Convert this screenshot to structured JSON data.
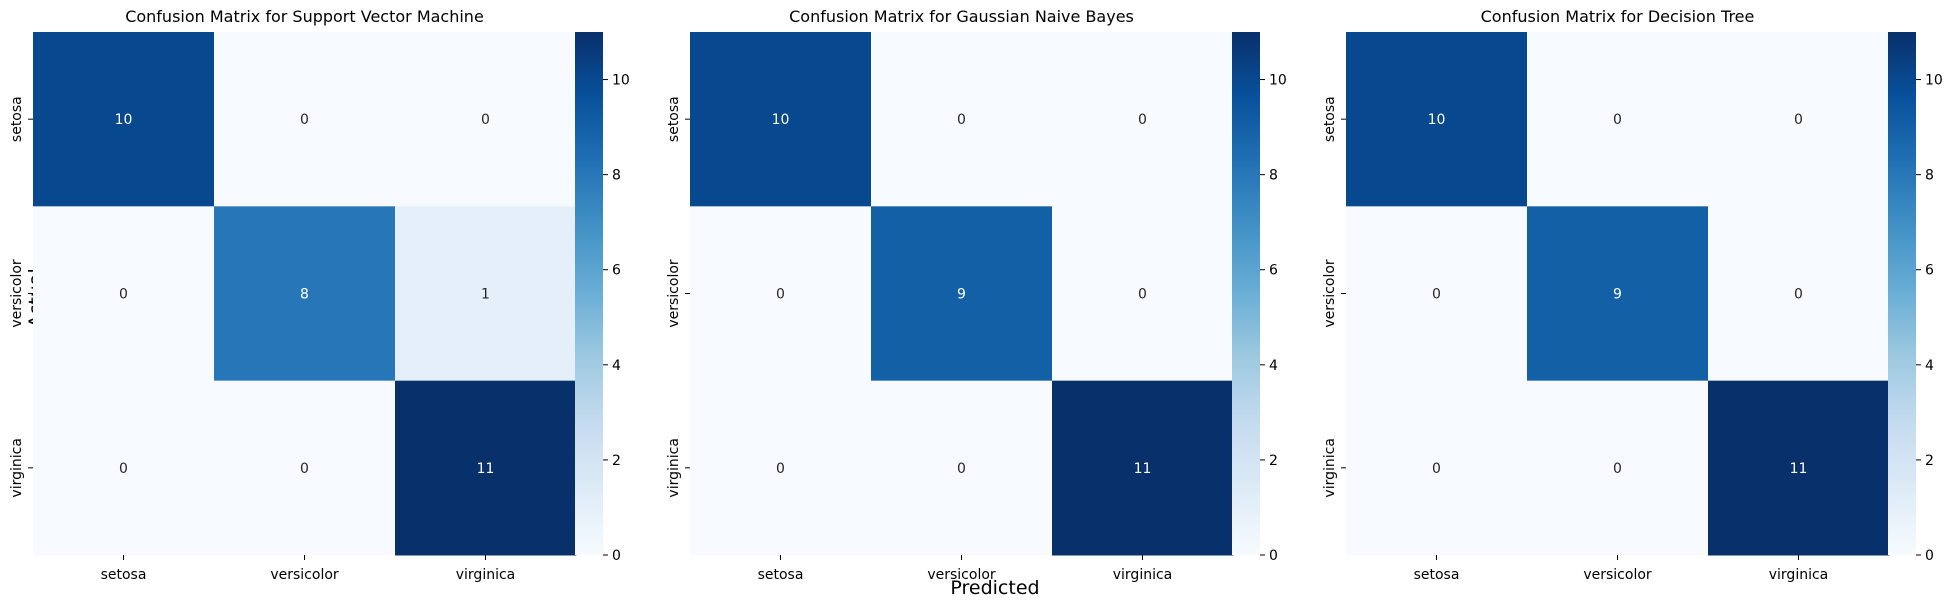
{
  "figure": {
    "xlabel": "Predicted",
    "ylabel": "Actual"
  },
  "chart_data": [
    {
      "type": "heatmap",
      "title": "Confusion Matrix for Support Vector Machine",
      "x_categories": [
        "setosa",
        "versicolor",
        "virginica"
      ],
      "y_categories": [
        "setosa",
        "versicolor",
        "virginica"
      ],
      "values": [
        [
          10,
          0,
          0
        ],
        [
          0,
          8,
          1
        ],
        [
          0,
          0,
          11
        ]
      ],
      "colormap": "Blues",
      "vmin": 0,
      "vmax": 11,
      "colorbar_ticks": [
        0,
        2,
        4,
        6,
        8,
        10
      ]
    },
    {
      "type": "heatmap",
      "title": "Confusion Matrix for Gaussian Naive Bayes",
      "x_categories": [
        "setosa",
        "versicolor",
        "virginica"
      ],
      "y_categories": [
        "setosa",
        "versicolor",
        "virginica"
      ],
      "values": [
        [
          10,
          0,
          0
        ],
        [
          0,
          9,
          0
        ],
        [
          0,
          0,
          11
        ]
      ],
      "colormap": "Blues",
      "vmin": 0,
      "vmax": 11,
      "colorbar_ticks": [
        0,
        2,
        4,
        6,
        8,
        10
      ]
    },
    {
      "type": "heatmap",
      "title": "Confusion Matrix for Decision Tree",
      "x_categories": [
        "setosa",
        "versicolor",
        "virginica"
      ],
      "y_categories": [
        "setosa",
        "versicolor",
        "virginica"
      ],
      "values": [
        [
          10,
          0,
          0
        ],
        [
          0,
          9,
          0
        ],
        [
          0,
          0,
          11
        ]
      ],
      "colormap": "Blues",
      "vmin": 0,
      "vmax": 11,
      "colorbar_ticks": [
        0,
        2,
        4,
        6,
        8,
        10
      ]
    }
  ]
}
